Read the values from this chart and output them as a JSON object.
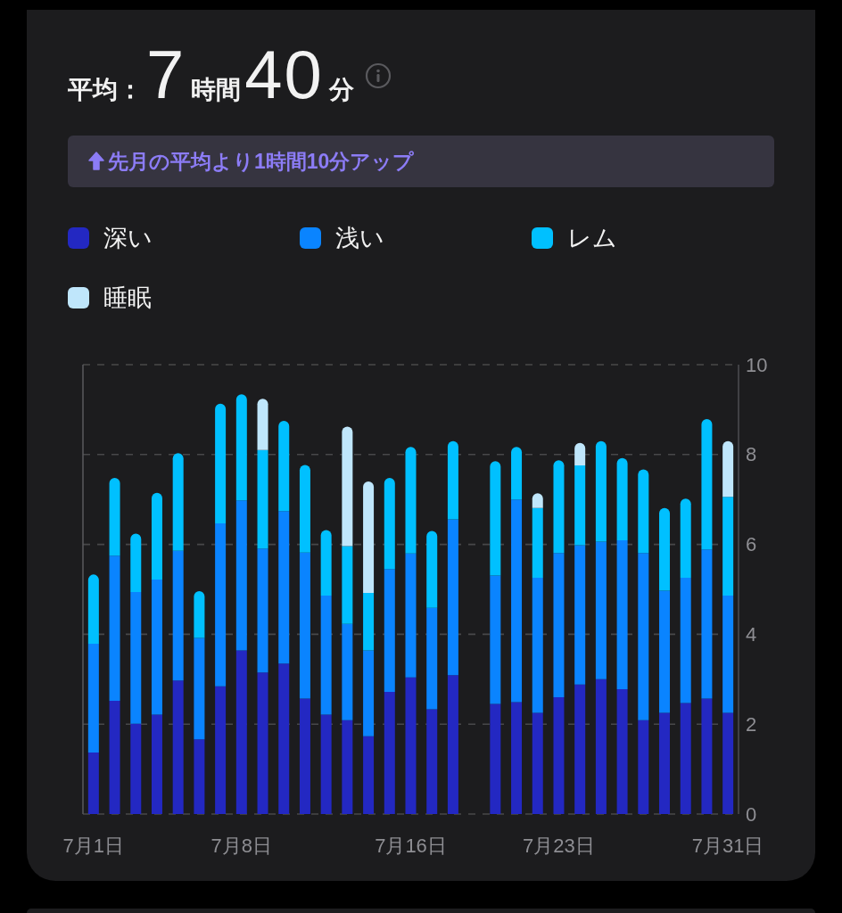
{
  "chart_data": {
    "type": "bar",
    "stacked": true,
    "title": "平均：7時間40分",
    "subtitle": "先月の平均より1時間10分アップ",
    "categories": [
      "7月1日",
      null,
      null,
      null,
      null,
      null,
      null,
      "7月8日",
      null,
      null,
      null,
      null,
      null,
      null,
      null,
      "7月16日",
      null,
      null,
      null,
      null,
      null,
      null,
      "7月23日",
      null,
      null,
      null,
      null,
      null,
      null,
      null,
      "7月31日"
    ],
    "series": [
      {
        "name": "深い",
        "color": "#2328c2",
        "values": [
          1.37,
          2.52,
          2.01,
          2.21,
          2.97,
          1.66,
          2.84,
          3.64,
          3.15,
          3.35,
          2.57,
          2.21,
          2.09,
          1.73,
          2.72,
          3.04,
          2.33,
          3.09,
          null,
          2.45,
          2.49,
          2.25,
          2.6,
          2.88,
          3.0,
          2.78,
          2.09,
          2.25,
          2.47,
          2.57,
          2.25
        ]
      },
      {
        "name": "浅い",
        "color": "#0a84ff",
        "values": [
          2.42,
          3.23,
          2.93,
          3.01,
          2.89,
          2.26,
          3.63,
          3.34,
          2.76,
          3.39,
          3.25,
          2.65,
          2.14,
          1.91,
          2.73,
          2.76,
          2.26,
          3.47,
          null,
          2.86,
          4.51,
          3.01,
          3.21,
          3.1,
          3.06,
          3.31,
          3.72,
          2.72,
          2.79,
          3.32,
          2.61
        ]
      },
      {
        "name": "レム",
        "color": "#00c0ff",
        "values": [
          1.54,
          1.73,
          1.3,
          1.93,
          2.17,
          1.04,
          2.66,
          2.36,
          2.19,
          2.01,
          1.95,
          1.46,
          1.73,
          1.28,
          2.03,
          2.37,
          1.71,
          1.74,
          null,
          2.54,
          1.17,
          1.55,
          2.06,
          1.78,
          2.24,
          1.83,
          1.86,
          1.84,
          1.76,
          2.9,
          2.2
        ]
      },
      {
        "name": "睡眠",
        "color": "#bfe6fb",
        "values": [
          null,
          null,
          null,
          null,
          null,
          null,
          null,
          null,
          1.14,
          null,
          null,
          null,
          2.66,
          2.48,
          null,
          null,
          null,
          null,
          null,
          null,
          null,
          0.33,
          null,
          0.5,
          null,
          null,
          null,
          null,
          null,
          null,
          1.24
        ]
      }
    ],
    "ylim": [
      0,
      10
    ],
    "yticks": [
      0,
      2,
      4,
      6,
      8,
      10
    ],
    "grid": "y",
    "legend": "top"
  }
}
